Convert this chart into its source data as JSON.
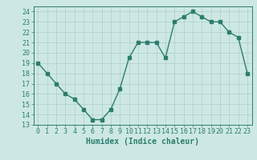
{
  "x": [
    0,
    1,
    2,
    3,
    4,
    5,
    6,
    7,
    8,
    9,
    10,
    11,
    12,
    13,
    14,
    15,
    16,
    17,
    18,
    19,
    20,
    21,
    22,
    23
  ],
  "y": [
    19,
    18,
    17,
    16,
    15.5,
    14.5,
    13.5,
    13.5,
    14.5,
    16.5,
    19.5,
    21,
    21,
    21,
    19.5,
    23,
    23.5,
    24,
    23.5,
    23,
    23,
    22,
    21.5,
    18
  ],
  "line_color": "#2d7d6e",
  "marker": "s",
  "markersize": 2.5,
  "linewidth": 1.0,
  "bg_color": "#cde8e4",
  "grid_color": "#aecfca",
  "xlabel": "Humidex (Indice chaleur)",
  "xlabel_fontsize": 7,
  "tick_fontsize": 6,
  "ylim": [
    13,
    24.5
  ],
  "yticks": [
    13,
    14,
    15,
    16,
    17,
    18,
    19,
    20,
    21,
    22,
    23,
    24
  ],
  "xlim": [
    -0.5,
    23.5
  ],
  "xticks": [
    0,
    1,
    2,
    3,
    4,
    5,
    6,
    7,
    8,
    9,
    10,
    11,
    12,
    13,
    14,
    15,
    16,
    17,
    18,
    19,
    20,
    21,
    22,
    23
  ]
}
